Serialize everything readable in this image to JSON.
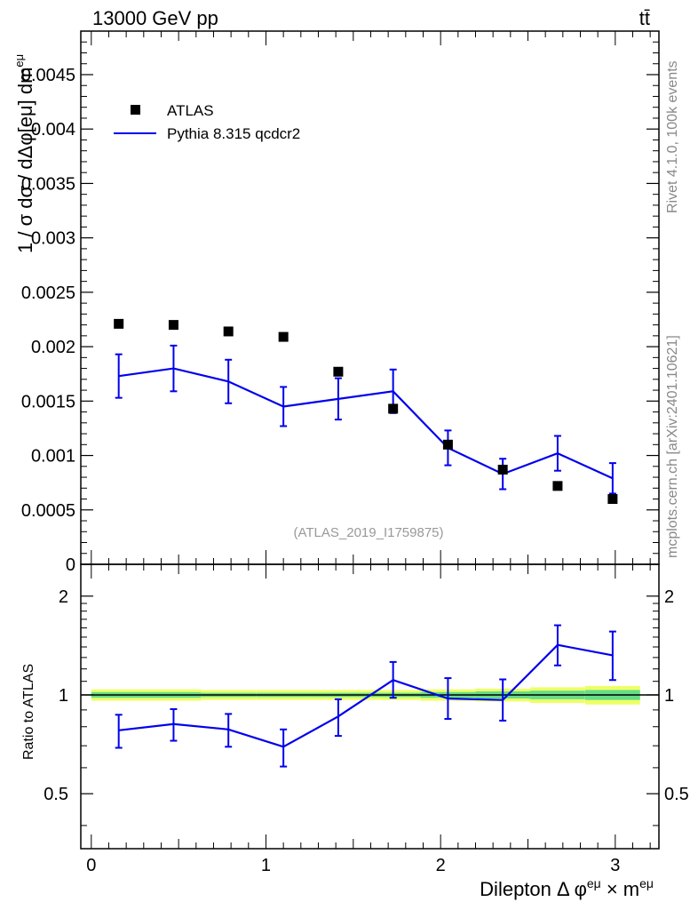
{
  "header": {
    "left": "13000 GeV pp",
    "right": "tt̄"
  },
  "side_labels": {
    "rivet": "Rivet 4.1.0,  100k events",
    "mcplots": "mcplots.cern.ch [arXiv:2401.10621]"
  },
  "watermark": "(ATLAS_2019_I1759875)",
  "colors": {
    "mc": "#0000ee",
    "data": "#000000",
    "band_inner": "#66dd88",
    "band_outer": "#eeff66"
  },
  "chart_data": [
    {
      "type": "scatter",
      "panel": "main",
      "ylabel": "1 / σ  d²σ / dΔφ[eμ] dm^{eμ}",
      "ylim": [
        0,
        0.0049
      ],
      "xlim": [
        -0.06,
        3.25
      ],
      "yticks": [
        0,
        0.0005,
        0.001,
        0.0015,
        0.002,
        0.0025,
        0.003,
        0.0035,
        0.004,
        0.0045
      ],
      "ytick_labels": [
        "0",
        "0.0005",
        "0.001",
        "0.0015",
        "0.002",
        "0.0025",
        "0.003",
        "0.0035",
        "0.004",
        "0.0045"
      ],
      "legend": [
        {
          "label": "ATLAS",
          "kind": "marker"
        },
        {
          "label": "Pythia 8.315 qcdcr2",
          "kind": "line"
        }
      ],
      "legend_position": "top-left",
      "x": [
        0.157,
        0.471,
        0.785,
        1.1,
        1.414,
        1.728,
        2.042,
        2.356,
        2.67,
        2.985
      ],
      "series": [
        {
          "name": "ATLAS",
          "values": [
            0.00221,
            0.0022,
            0.00214,
            0.00209,
            0.00177,
            0.00143,
            0.0011,
            0.00087,
            0.00072,
            0.0006
          ]
        },
        {
          "name": "Pythia 8.315 qcdcr2",
          "values": [
            0.00173,
            0.0018,
            0.00168,
            0.00145,
            0.00152,
            0.00159,
            0.00107,
            0.00083,
            0.00102,
            0.00079
          ],
          "errors": [
            0.0002,
            0.00021,
            0.0002,
            0.00018,
            0.00019,
            0.0002,
            0.00016,
            0.00014,
            0.00016,
            0.00014
          ]
        }
      ]
    },
    {
      "type": "line",
      "panel": "ratio",
      "ylabel": "Ratio to ATLAS",
      "yscale": "log",
      "ylim": [
        0.34,
        2.5
      ],
      "yticks": [
        0.5,
        1,
        2
      ],
      "ytick_labels": [
        "0.5",
        "1",
        "2"
      ],
      "xlabel": "Dilepton Δ φ^{eμ} × m^{eμ}",
      "xticks": [
        0,
        1,
        2,
        3
      ],
      "xtick_labels": [
        "0",
        "1",
        "2",
        "3"
      ],
      "x": [
        0.157,
        0.471,
        0.785,
        1.1,
        1.414,
        1.728,
        2.042,
        2.356,
        2.67,
        2.985
      ],
      "series": [
        {
          "name": "Pythia 8.315 qcdcr2 / ATLAS",
          "values": [
            0.78,
            0.815,
            0.785,
            0.695,
            0.86,
            1.11,
            0.975,
            0.965,
            1.42,
            1.32
          ],
          "errors_up": [
            0.09,
            0.09,
            0.09,
            0.09,
            0.11,
            0.15,
            0.15,
            0.15,
            0.21,
            0.24
          ],
          "errors_down": [
            0.09,
            0.09,
            0.09,
            0.09,
            0.11,
            0.13,
            0.13,
            0.13,
            0.19,
            0.21
          ]
        }
      ],
      "band_inner": [
        0.02,
        0.02,
        0.015,
        0.015,
        0.015,
        0.015,
        0.02,
        0.025,
        0.03,
        0.035
      ],
      "band_outer": [
        0.04,
        0.04,
        0.035,
        0.035,
        0.035,
        0.035,
        0.04,
        0.045,
        0.055,
        0.065
      ]
    }
  ]
}
